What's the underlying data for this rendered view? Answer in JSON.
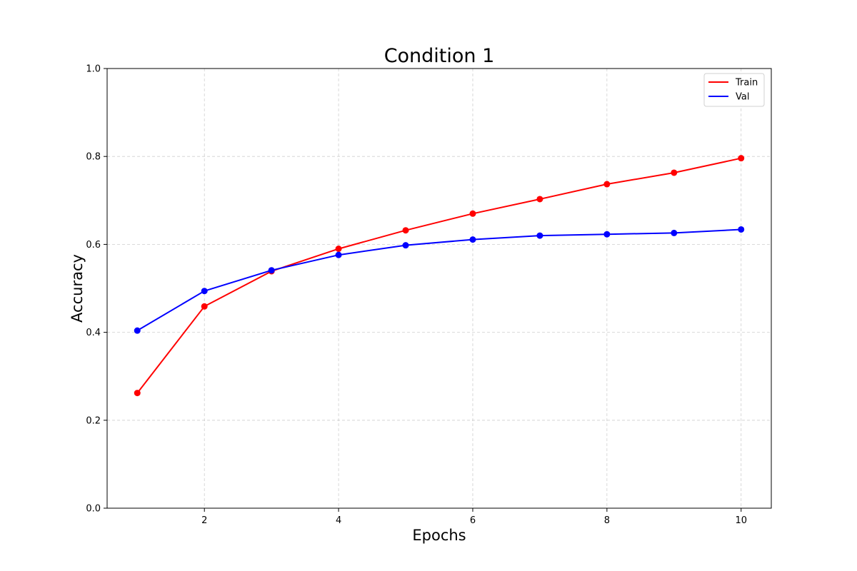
{
  "chart_data": {
    "type": "line",
    "title": "Condition 1",
    "xlabel": "Epochs",
    "ylabel": "Accuracy",
    "xlim": [
      0.55,
      10.45
    ],
    "ylim": [
      0,
      1
    ],
    "xticks": [
      2,
      4,
      6,
      8,
      10
    ],
    "yticks": [
      0.0,
      0.2,
      0.4,
      0.6,
      0.8,
      1.0
    ],
    "xtick_labels": [
      "2",
      "4",
      "6",
      "8",
      "10"
    ],
    "ytick_labels": [
      "0.0",
      "0.2",
      "0.4",
      "0.6",
      "0.8",
      "1.0"
    ],
    "grid": true,
    "legend_position": "top-right",
    "x": [
      1,
      2,
      3,
      4,
      5,
      6,
      7,
      8,
      9,
      10
    ],
    "series": [
      {
        "name": "Train",
        "color": "#ff0000",
        "values": [
          0.262,
          0.459,
          0.539,
          0.59,
          0.632,
          0.67,
          0.703,
          0.737,
          0.763,
          0.796
        ]
      },
      {
        "name": "Val",
        "color": "#0000ff",
        "values": [
          0.404,
          0.494,
          0.541,
          0.576,
          0.598,
          0.611,
          0.62,
          0.623,
          0.626,
          0.634
        ]
      }
    ]
  }
}
